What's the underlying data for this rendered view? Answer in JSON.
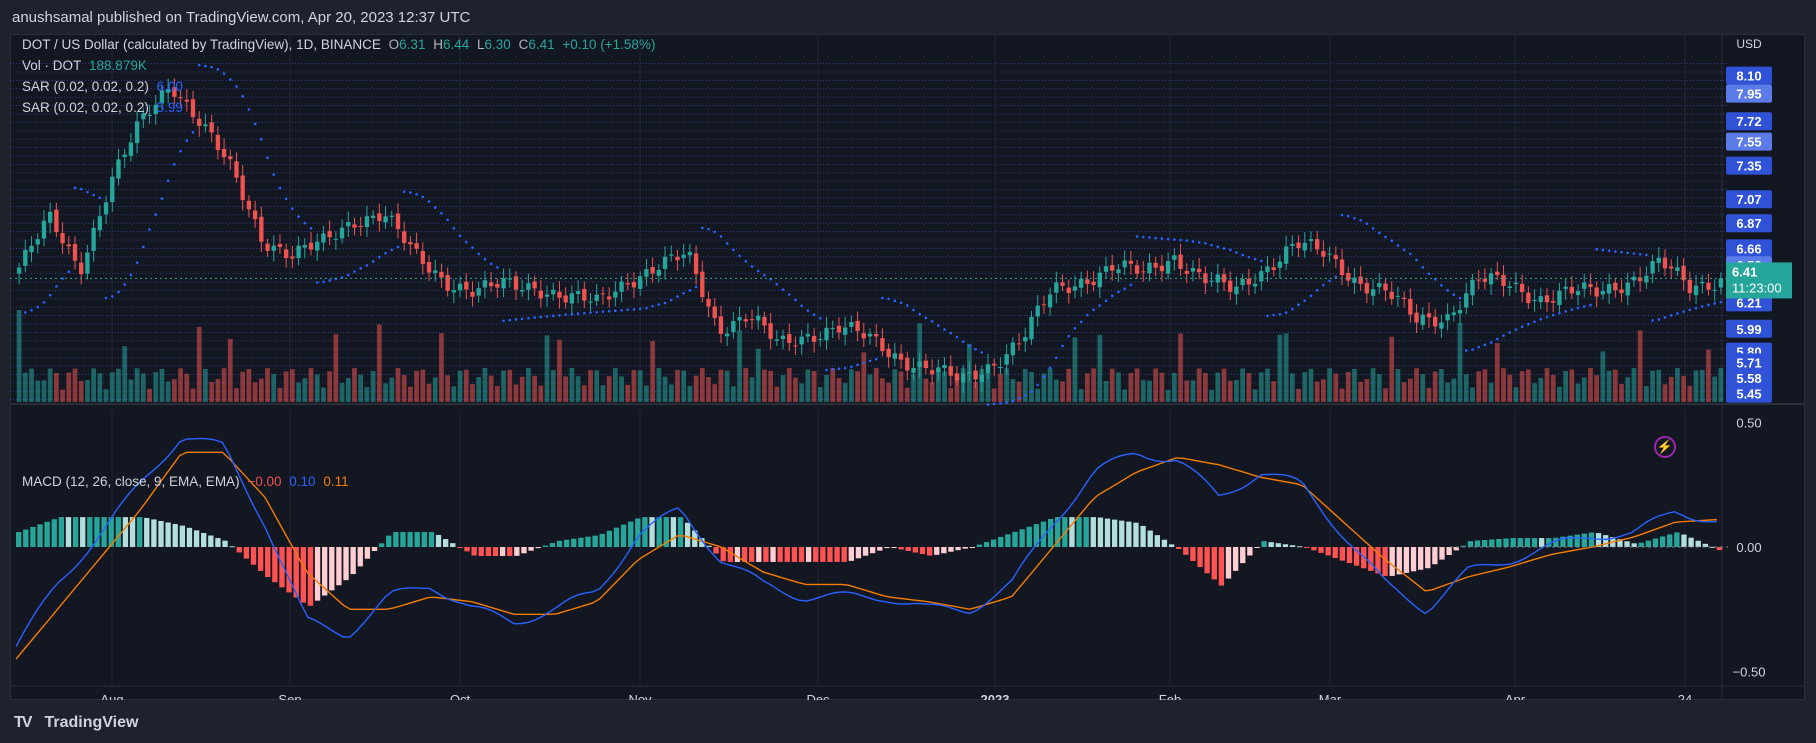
{
  "header": {
    "published_by": "anushsamal published on TradingView.com, Apr 20, 2023 12:37 UTC"
  },
  "legend": {
    "symbol": "DOT / US Dollar (calculated by TradingView), 1D, BINANCE",
    "o_label": "O",
    "o_value": "6.31",
    "h_label": "H",
    "h_value": "6.44",
    "l_label": "L",
    "l_value": "6.30",
    "c_label": "C",
    "c_value": "6.41",
    "change": "+0.10 (+1.58%)",
    "vol_label": "Vol · DOT",
    "vol_value": "188.879K",
    "sar1_label": "SAR (0.02, 0.02, 0.2)",
    "sar1_value": "6.00",
    "sar2_label": "SAR (0.02, 0.02, 0.2)",
    "sar2_value": "5.99",
    "macd_label": "MACD (12, 26, close, 9, EMA, EMA)",
    "macd_hist": "−0.00",
    "macd_line": "0.10",
    "macd_signal": "0.11"
  },
  "footer": {
    "brand": "TradingView"
  },
  "colors": {
    "up": "#26a69a",
    "down": "#ef5350",
    "macd": "#2962ff",
    "signal": "#f57c00",
    "sar": "#2962ff"
  },
  "chart_data": [
    {
      "type": "candlestick",
      "title": "DOT / US Dollar",
      "currency": "USD",
      "interval": "1D",
      "x_ticks": [
        "Aug",
        "Sep",
        "Oct",
        "Nov",
        "Dec",
        "2023",
        "Feb",
        "Mar",
        "Apr",
        "24"
      ],
      "y_ticks": [
        "8.10",
        "7.95",
        "7.72",
        "7.55",
        "7.35",
        "7.07",
        "6.87",
        "6.66",
        "6.52",
        "6.41",
        "6.30",
        "6.21",
        "5.99",
        "5.80",
        "5.71",
        "5.58",
        "5.45"
      ],
      "last_price": "6.41",
      "countdown": "11:23:00",
      "close_path": [
        [
          "Jul 20",
          6.5
        ],
        [
          "Jul 25",
          6.9
        ],
        [
          "Jul 30",
          6.5
        ],
        [
          "Aug 5",
          7.2
        ],
        [
          "Aug 10",
          7.7
        ],
        [
          "Aug 13",
          8.05
        ],
        [
          "Aug 16",
          7.7
        ],
        [
          "Aug 19",
          7.3
        ],
        [
          "Aug 22",
          6.75
        ],
        [
          "Aug 27",
          6.6
        ],
        [
          "Sep 2",
          6.7
        ],
        [
          "Sep 8",
          6.9
        ],
        [
          "Sep 12",
          6.95
        ],
        [
          "Sep 16",
          6.6
        ],
        [
          "Sep 20",
          6.4
        ],
        [
          "Sep 25",
          6.3
        ],
        [
          "Oct 1",
          6.35
        ],
        [
          "Oct 8",
          6.35
        ],
        [
          "Oct 15",
          6.25
        ],
        [
          "Oct 22",
          6.2
        ],
        [
          "Oct 28",
          6.4
        ],
        [
          "Nov 2",
          6.5
        ],
        [
          "Nov 6",
          6.6
        ],
        [
          "Nov 9",
          6.0
        ],
        [
          "Nov 13",
          6.1
        ],
        [
          "Nov 20",
          5.85
        ],
        [
          "Nov 27",
          5.95
        ],
        [
          "Dec 3",
          6.0
        ],
        [
          "Dec 10",
          5.9
        ],
        [
          "Dec 15",
          5.75
        ],
        [
          "Dec 20",
          5.65
        ],
        [
          "Dec 28",
          5.55
        ],
        [
          "Jan 3",
          5.7
        ],
        [
          "Jan 10",
          5.9
        ],
        [
          "Jan 14",
          6.3
        ],
        [
          "Jan 20",
          6.4
        ],
        [
          "Jan 27",
          6.5
        ],
        [
          "Feb 1",
          6.45
        ],
        [
          "Feb 5",
          6.6
        ],
        [
          "Feb 10",
          6.4
        ],
        [
          "Feb 15",
          6.3
        ],
        [
          "Feb 19",
          6.5
        ],
        [
          "Feb 21",
          6.7
        ],
        [
          "Feb 24",
          6.6
        ],
        [
          "Feb 28",
          6.4
        ],
        [
          "Mar 5",
          6.3
        ],
        [
          "Mar 9",
          6.05
        ],
        [
          "Mar 12",
          6.1
        ],
        [
          "Mar 17",
          6.4
        ],
        [
          "Mar 22",
          6.35
        ],
        [
          "Mar 28",
          6.25
        ],
        [
          "Apr 3",
          6.3
        ],
        [
          "Apr 8",
          6.28
        ],
        [
          "Apr 13",
          6.4
        ],
        [
          "Apr 17",
          6.55
        ],
        [
          "Apr 19",
          6.31
        ],
        [
          "Apr 20",
          6.41
        ]
      ]
    },
    {
      "type": "line",
      "title": "MACD (12, 26, close, 9, EMA, EMA)",
      "y_ticks": [
        "0.50",
        "0.00",
        "−0.50"
      ],
      "series": [
        {
          "name": "MACD",
          "values": [
            -0.4,
            -0.15,
            0.05,
            0.25,
            0.45,
            0.4,
            0.1,
            -0.3,
            -0.35,
            -0.2,
            -0.15,
            -0.25,
            -0.3,
            -0.25,
            -0.18,
            0.05,
            0.15,
            -0.05,
            -0.15,
            -0.2,
            -0.2,
            -0.2,
            -0.25,
            -0.25,
            -0.15,
            0.1,
            0.3,
            0.38,
            0.35,
            0.2,
            0.3,
            0.25,
            0.05,
            -0.15,
            -0.25,
            -0.1,
            -0.05,
            0.0,
            0.05,
            0.05,
            0.15,
            0.1
          ]
        },
        {
          "name": "Signal",
          "values": [
            -0.45,
            -0.25,
            -0.05,
            0.15,
            0.38,
            0.38,
            0.2,
            -0.1,
            -0.25,
            -0.25,
            -0.2,
            -0.22,
            -0.27,
            -0.27,
            -0.22,
            -0.05,
            0.05,
            0.0,
            -0.1,
            -0.15,
            -0.15,
            -0.2,
            -0.22,
            -0.25,
            -0.2,
            0.0,
            0.2,
            0.3,
            0.36,
            0.33,
            0.28,
            0.25,
            0.1,
            -0.05,
            -0.18,
            -0.12,
            -0.08,
            -0.03,
            0.0,
            0.04,
            0.1,
            0.11
          ]
        }
      ],
      "ylim": [
        -0.55,
        0.55
      ]
    }
  ]
}
